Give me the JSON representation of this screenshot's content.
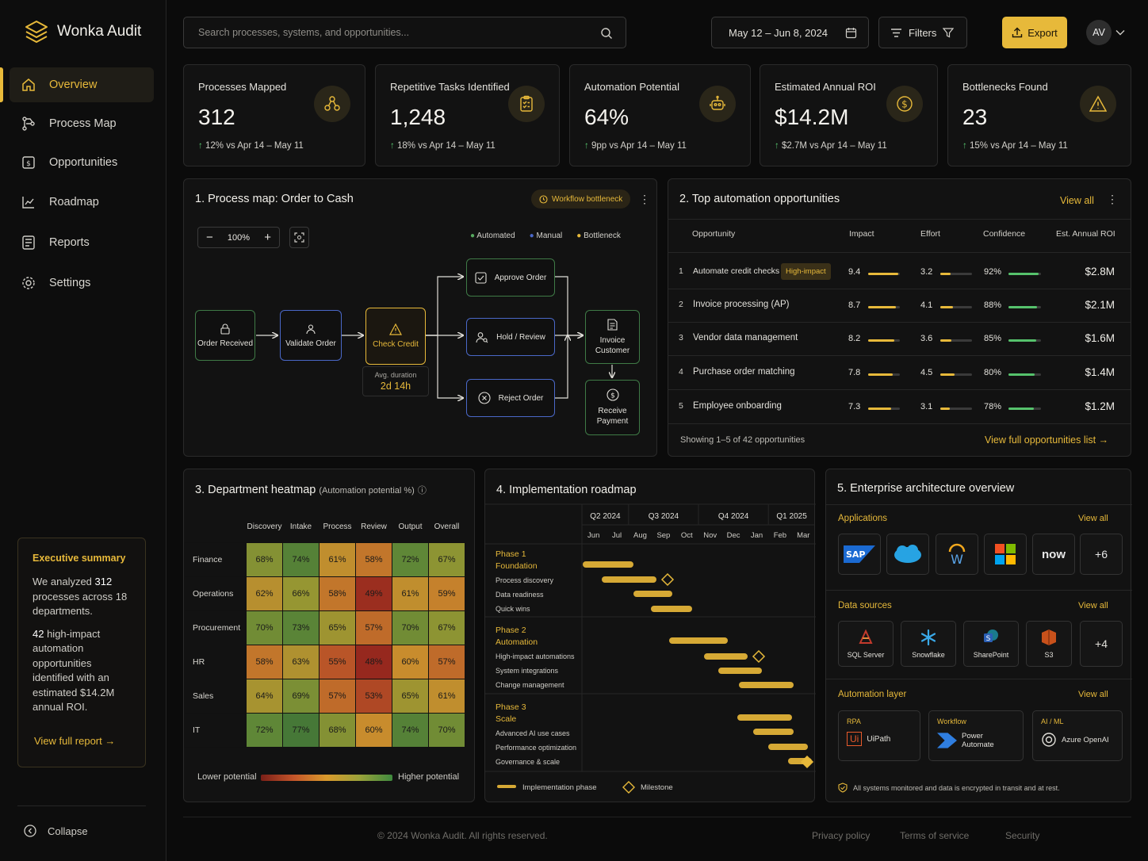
{
  "app": {
    "title": "Wonka Audit"
  },
  "sidebar": {
    "items": [
      {
        "label": "Overview",
        "icon": "home-icon"
      },
      {
        "label": "Process Map",
        "icon": "process-map-icon"
      },
      {
        "label": "Opportunities",
        "icon": "opportunities-icon"
      },
      {
        "label": "Roadmap",
        "icon": "roadmap-icon"
      },
      {
        "label": "Reports",
        "icon": "reports-icon"
      },
      {
        "label": "Settings",
        "icon": "settings-icon"
      }
    ],
    "summary": {
      "title": "Executive summary",
      "p1_a": "We analyzed ",
      "p1_b": "312",
      "p1_c": " processes across 18 departments.",
      "p2_a": "42",
      "p2_b": " high-impact automation opportunities identified with an estimated $14.2M annual ROI.",
      "link": "View full report"
    },
    "collapse": "Collapse"
  },
  "header": {
    "search_placeholder": "Search processes, systems, and opportunities...",
    "date_range": "May 12 – Jun 8, 2024",
    "filters": "Filters",
    "export": "Export",
    "avatar": "AV"
  },
  "kpis": [
    {
      "title": "Processes Mapped",
      "value": "312",
      "delta": "12%",
      "vs": "vs  Apr 14 – May 11"
    },
    {
      "title": "Repetitive Tasks Identified",
      "value": "1,248",
      "delta": "18%",
      "vs": "vs  Apr 14 – May 11"
    },
    {
      "title": "Automation Potential",
      "value": "64%",
      "delta": "9pp",
      "vs": "vs  Apr 14 – May 11"
    },
    {
      "title": "Estimated Annual ROI",
      "value": "$14.2M",
      "delta": "$2.7M",
      "vs": "vs  Apr 14 – May 11"
    },
    {
      "title": "Bottlenecks Found",
      "value": "23",
      "delta": "15%",
      "vs": "vs  Apr 14 – May 11"
    }
  ],
  "process": {
    "title": "1.  Process map: Order to Cash",
    "badge": "Workflow bottleneck",
    "zoom": "100%",
    "legend": [
      "Automated",
      "Manual",
      "Bottleneck"
    ],
    "nodes": {
      "order_received": "Order Received",
      "validate": "Validate Order",
      "check": "Check Credit",
      "approve": "Approve Order",
      "hold": "Hold / Review",
      "reject": "Reject Order",
      "invoice": "Invoice Customer",
      "payment": "Receive Payment"
    },
    "avg_label": "Avg. duration",
    "avg_value": "2d 14h"
  },
  "opps": {
    "title": "2.  Top automation opportunities",
    "view_all": "View all",
    "headers": [
      "Opportunity",
      "Impact",
      "Effort",
      "Confidence",
      "Est. Annual ROI"
    ],
    "rows": [
      {
        "n": "1",
        "name": "Automate credit checks",
        "badge": "High-impact",
        "impact": "9.4",
        "effort": "3.2",
        "conf": "92%",
        "roi": "$2.8M",
        "i": 0.94,
        "e": 0.32,
        "c": 0.92
      },
      {
        "n": "2",
        "name": "Invoice processing (AP)",
        "badge": "",
        "impact": "8.7",
        "effort": "4.1",
        "conf": "88%",
        "roi": "$2.1M",
        "i": 0.87,
        "e": 0.41,
        "c": 0.88
      },
      {
        "n": "3",
        "name": "Vendor data management",
        "badge": "",
        "impact": "8.2",
        "effort": "3.6",
        "conf": "85%",
        "roi": "$1.6M",
        "i": 0.82,
        "e": 0.36,
        "c": 0.85
      },
      {
        "n": "4",
        "name": "Purchase order matching",
        "badge": "",
        "impact": "7.8",
        "effort": "4.5",
        "conf": "80%",
        "roi": "$1.4M",
        "i": 0.78,
        "e": 0.45,
        "c": 0.8
      },
      {
        "n": "5",
        "name": "Employee onboarding",
        "badge": "",
        "impact": "7.3",
        "effort": "3.1",
        "conf": "78%",
        "roi": "$1.2M",
        "i": 0.73,
        "e": 0.31,
        "c": 0.78
      }
    ],
    "showing": "Showing 1–5 of 42 opportunities",
    "full_link": "View full opportunities list"
  },
  "heatmap": {
    "title": "3.  Department heatmap",
    "subtitle": "(Automation potential %)",
    "cols": [
      "Discovery",
      "Intake",
      "Process",
      "Review",
      "Output",
      "Overall"
    ],
    "rows": [
      {
        "name": "Finance",
        "vals": [
          68,
          74,
          61,
          58,
          72,
          67
        ]
      },
      {
        "name": "Operations",
        "vals": [
          62,
          66,
          58,
          49,
          61,
          59
        ]
      },
      {
        "name": "Procurement",
        "vals": [
          70,
          73,
          65,
          57,
          70,
          67
        ]
      },
      {
        "name": "HR",
        "vals": [
          58,
          63,
          55,
          48,
          60,
          57
        ]
      },
      {
        "name": "Sales",
        "vals": [
          64,
          69,
          57,
          53,
          65,
          61
        ]
      },
      {
        "name": "IT",
        "vals": [
          72,
          77,
          68,
          60,
          74,
          70
        ]
      }
    ],
    "low": "Lower potential",
    "high": "Higher potential"
  },
  "roadmap": {
    "title": "4.  Implementation roadmap",
    "quarters": [
      "Q2 2024",
      "Q3 2024",
      "Q4 2024",
      "Q1 2025"
    ],
    "months": [
      "Jun",
      "Jul",
      "Aug",
      "Sep",
      "Oct",
      "Nov",
      "Dec",
      "Jan",
      "Feb",
      "Mar"
    ],
    "phases": [
      {
        "name": "Phase 1",
        "sub": "Foundation",
        "tasks": [
          "Process discovery",
          "Data readiness",
          "Quick wins"
        ]
      },
      {
        "name": "Phase 2",
        "sub": "Automation",
        "tasks": [
          "High-impact automations",
          "System integrations",
          "Change management"
        ]
      },
      {
        "name": "Phase 3",
        "sub": "Scale",
        "tasks": [
          "Advanced AI use cases",
          "Performance optimization",
          "Governance & scale"
        ]
      }
    ],
    "legend_phase": "Implementation phase",
    "legend_milestone": "Milestone"
  },
  "arch": {
    "title": "5.  Enterprise architecture overview",
    "apps_label": "Applications",
    "ds_label": "Data sources",
    "al_label": "Automation layer",
    "view_all": "View all",
    "apps": [
      "SAP",
      "Salesforce",
      "Workday",
      "Microsoft",
      "now",
      "+6"
    ],
    "ds": [
      "SQL Server",
      "Snowflake",
      "SharePoint",
      "S3",
      "+4"
    ],
    "al": [
      {
        "cat": "RPA",
        "name": "UiPath"
      },
      {
        "cat": "Workflow",
        "name": "Power Automate"
      },
      {
        "cat": "AI / ML",
        "name": "Azure OpenAI"
      }
    ],
    "note": "All systems monitored and data is encrypted in transit and at rest."
  },
  "footer": {
    "copy": "© 2024 Wonka Audit. All rights reserved.",
    "privacy": "Privacy policy",
    "terms": "Terms of service",
    "security": "Security"
  }
}
